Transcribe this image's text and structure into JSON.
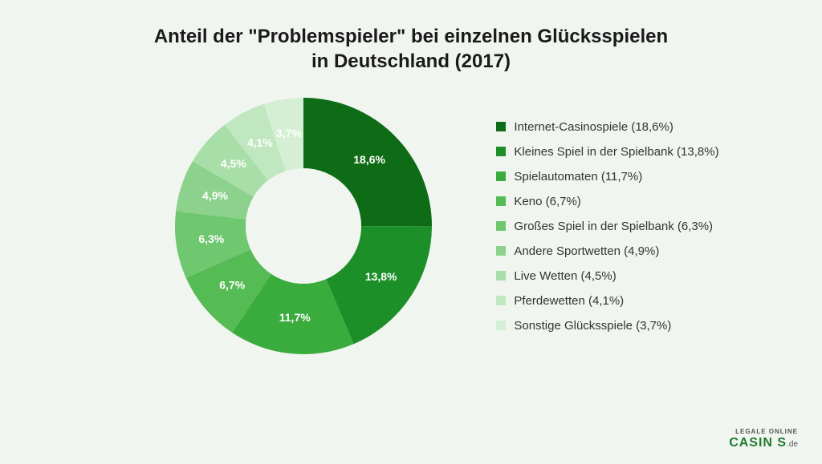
{
  "title_line1": "Anteil der \"Problemspieler\" bei einzelnen Glücksspielen",
  "title_line2": "in Deutschland (2017)",
  "chart": {
    "type": "donut",
    "inner_radius_ratio": 0.45,
    "background_color": "#f1f5f0",
    "label_color": "#ffffff",
    "label_fontsize": 14,
    "start_angle_deg": 0,
    "slices": [
      {
        "label": "Internet-Casinospiele",
        "value": 18.6,
        "display": "18,6%",
        "color": "#0e6b16"
      },
      {
        "label": "Kleines Spiel in der Spielbank",
        "value": 13.8,
        "display": "13,8%",
        "color": "#1d8f29"
      },
      {
        "label": "Spielautomaten",
        "value": 11.7,
        "display": "11,7%",
        "color": "#3aab3d"
      },
      {
        "label": "Keno",
        "value": 6.7,
        "display": "6,7%",
        "color": "#55bb55"
      },
      {
        "label": "Großes Spiel in der Spielbank",
        "value": 6.3,
        "display": "6,3%",
        "color": "#6fc76f"
      },
      {
        "label": "Andere Sportwetten",
        "value": 4.9,
        "display": "4,9%",
        "color": "#8cd28c"
      },
      {
        "label": "Live Wetten",
        "value": 4.5,
        "display": "4,5%",
        "color": "#a8dea8"
      },
      {
        "label": "Pferdewetten",
        "value": 4.1,
        "display": "4,1%",
        "color": "#c0e7c0"
      },
      {
        "label": "Sonstige Glücksspiele",
        "value": 3.7,
        "display": "3,7%",
        "color": "#d4efd4"
      }
    ],
    "legend_fontsize": 15,
    "legend_text_color": "#333333"
  },
  "brand": {
    "top": "LEGALE ONLINE",
    "main": "CASIN   S",
    "suffix": ".de"
  }
}
